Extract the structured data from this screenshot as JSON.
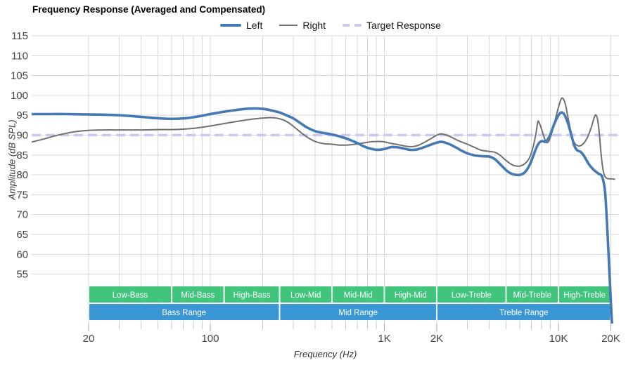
{
  "title": "Frequency Response (Averaged and Compensated)",
  "legend": [
    {
      "label": "Left"
    },
    {
      "label": "Right"
    },
    {
      "label": "Target Response"
    }
  ],
  "axes": {
    "x": {
      "label": "Frequency (Hz)"
    },
    "y": {
      "label": "Amplitude (dB SPL)"
    }
  },
  "colors": {
    "left": "#4579b4",
    "right": "#707070",
    "target": "#c8c8f0",
    "grid": "#d8d8d8",
    "tick": "#c4c4c4",
    "tick_label": "#444444",
    "band_green": "#41c57c",
    "band_blue": "#3b97d3",
    "band_text": "#ffffff"
  },
  "bands": {
    "sub_rows": [
      {
        "label": "Low-Bass",
        "from_hz": 20,
        "to_hz": 60
      },
      {
        "label": "Mid-Bass",
        "from_hz": 60,
        "to_hz": 120
      },
      {
        "label": "High-Bass",
        "from_hz": 120,
        "to_hz": 250
      },
      {
        "label": "Low-Mid",
        "from_hz": 250,
        "to_hz": 500
      },
      {
        "label": "Mid-Mid",
        "from_hz": 500,
        "to_hz": 1000
      },
      {
        "label": "High-Mid",
        "from_hz": 1000,
        "to_hz": 2000
      },
      {
        "label": "Low-Treble",
        "from_hz": 2000,
        "to_hz": 5000
      },
      {
        "label": "Mid-Treble",
        "from_hz": 5000,
        "to_hz": 10000
      },
      {
        "label": "High-Treble",
        "from_hz": 10000,
        "to_hz": 20000
      }
    ],
    "range_rows": [
      {
        "label": "Bass Range",
        "from_hz": 20,
        "to_hz": 250
      },
      {
        "label": "Mid Range",
        "from_hz": 250,
        "to_hz": 2000
      },
      {
        "label": "Treble Range",
        "from_hz": 2000,
        "to_hz": 20000
      }
    ]
  },
  "chart_data": {
    "type": "line",
    "title": "Frequency Response (Averaged and Compensated)",
    "xlabel": "Frequency (Hz)",
    "ylabel": "Amplitude (dB SPL)",
    "x_scale": "log",
    "x_range_hz": [
      9.4,
      22400
    ],
    "y_range_db": [
      42.5,
      115
    ],
    "grid": true,
    "legend_position": "top",
    "y_ticks": [
      115,
      110,
      105,
      100,
      95,
      90,
      85,
      80,
      75,
      70,
      65,
      60,
      55
    ],
    "x_ticks": [
      {
        "hz": 20,
        "label": "20"
      },
      {
        "hz": 100,
        "label": "100"
      },
      {
        "hz": 1000,
        "label": "1K"
      },
      {
        "hz": 2000,
        "label": "2K"
      },
      {
        "hz": 10000,
        "label": "10K"
      },
      {
        "hz": 20000,
        "label": "20K"
      }
    ],
    "x_minor_ticks_hz": [
      20,
      30,
      40,
      50,
      60,
      70,
      80,
      90,
      100,
      200,
      300,
      400,
      500,
      600,
      700,
      800,
      900,
      1000,
      2000,
      3000,
      4000,
      5000,
      6000,
      7000,
      8000,
      9000,
      10000,
      20000
    ],
    "target_response_db": 90,
    "series": [
      {
        "name": "Left",
        "points": [
          [
            9.5,
            95.3
          ],
          [
            12,
            95.3
          ],
          [
            15,
            95.3
          ],
          [
            20,
            95.2
          ],
          [
            25,
            95.15
          ],
          [
            30,
            95.0
          ],
          [
            35,
            94.8
          ],
          [
            40,
            94.6
          ],
          [
            45,
            94.4
          ],
          [
            50,
            94.25
          ],
          [
            55,
            94.15
          ],
          [
            60,
            94.1
          ],
          [
            70,
            94.2
          ],
          [
            80,
            94.5
          ],
          [
            90,
            94.9
          ],
          [
            100,
            95.3
          ],
          [
            120,
            95.9
          ],
          [
            140,
            96.3
          ],
          [
            160,
            96.6
          ],
          [
            180,
            96.7
          ],
          [
            200,
            96.6
          ],
          [
            220,
            96.3
          ],
          [
            250,
            95.7
          ],
          [
            280,
            94.8
          ],
          [
            300,
            94.2
          ],
          [
            330,
            93.0
          ],
          [
            360,
            91.9
          ],
          [
            400,
            91.0
          ],
          [
            440,
            90.6
          ],
          [
            480,
            90.3
          ],
          [
            520,
            90.0
          ],
          [
            560,
            89.6
          ],
          [
            600,
            89.2
          ],
          [
            650,
            88.6
          ],
          [
            700,
            88.0
          ],
          [
            750,
            87.3
          ],
          [
            800,
            86.8
          ],
          [
            850,
            86.5
          ],
          [
            900,
            86.3
          ],
          [
            950,
            86.35
          ],
          [
            1000,
            86.5
          ],
          [
            1100,
            87.0
          ],
          [
            1200,
            86.9
          ],
          [
            1300,
            86.6
          ],
          [
            1400,
            86.3
          ],
          [
            1500,
            86.3
          ],
          [
            1600,
            86.6
          ],
          [
            1700,
            87.0
          ],
          [
            1800,
            87.4
          ],
          [
            1900,
            87.8
          ],
          [
            2000,
            88.1
          ],
          [
            2100,
            88.3
          ],
          [
            2200,
            88.2
          ],
          [
            2400,
            87.6
          ],
          [
            2600,
            86.8
          ],
          [
            2800,
            86.0
          ],
          [
            3000,
            85.4
          ],
          [
            3300,
            84.9
          ],
          [
            3600,
            84.7
          ],
          [
            4000,
            84.6
          ],
          [
            4300,
            84.0
          ],
          [
            4600,
            82.8
          ],
          [
            5000,
            81.2
          ],
          [
            5300,
            80.4
          ],
          [
            5600,
            80.05
          ],
          [
            6000,
            80.0
          ],
          [
            6400,
            80.6
          ],
          [
            6800,
            82.3
          ],
          [
            7200,
            85.0
          ],
          [
            7500,
            87.0
          ],
          [
            7800,
            88.2
          ],
          [
            8100,
            88.5
          ],
          [
            8400,
            88.3
          ],
          [
            8700,
            89.0
          ],
          [
            9000,
            90.3
          ],
          [
            9500,
            93.0
          ],
          [
            10000,
            95.0
          ],
          [
            10400,
            95.7
          ],
          [
            10800,
            95.2
          ],
          [
            11300,
            93.2
          ],
          [
            11800,
            90.4
          ],
          [
            12300,
            87.5
          ],
          [
            12800,
            86.2
          ],
          [
            13400,
            85.8
          ],
          [
            14000,
            84.8
          ],
          [
            15000,
            82.6
          ],
          [
            16000,
            81.2
          ],
          [
            17000,
            80.3
          ],
          [
            17800,
            79.6
          ],
          [
            18500,
            76
          ],
          [
            19000,
            68
          ],
          [
            19500,
            58
          ],
          [
            20000,
            48
          ],
          [
            20400,
            41
          ]
        ]
      },
      {
        "name": "Right",
        "points": [
          [
            9.5,
            88.3
          ],
          [
            11,
            89.0
          ],
          [
            13,
            89.9
          ],
          [
            15,
            90.5
          ],
          [
            17,
            90.9
          ],
          [
            20,
            91.2
          ],
          [
            25,
            91.3
          ],
          [
            30,
            91.3
          ],
          [
            40,
            91.3
          ],
          [
            50,
            91.4
          ],
          [
            60,
            91.4
          ],
          [
            70,
            91.5
          ],
          [
            80,
            91.7
          ],
          [
            90,
            92.0
          ],
          [
            100,
            92.3
          ],
          [
            120,
            92.9
          ],
          [
            140,
            93.4
          ],
          [
            160,
            93.8
          ],
          [
            180,
            94.1
          ],
          [
            200,
            94.3
          ],
          [
            220,
            94.4
          ],
          [
            240,
            94.3
          ],
          [
            260,
            93.9
          ],
          [
            280,
            93.2
          ],
          [
            300,
            92.2
          ],
          [
            320,
            91.2
          ],
          [
            340,
            90.3
          ],
          [
            360,
            89.5
          ],
          [
            380,
            88.9
          ],
          [
            400,
            88.4
          ],
          [
            430,
            88.0
          ],
          [
            460,
            87.8
          ],
          [
            500,
            87.7
          ],
          [
            550,
            87.5
          ],
          [
            600,
            87.5
          ],
          [
            650,
            87.6
          ],
          [
            700,
            87.8
          ],
          [
            750,
            88.0
          ],
          [
            800,
            88.2
          ],
          [
            850,
            88.35
          ],
          [
            900,
            88.4
          ],
          [
            950,
            88.4
          ],
          [
            1000,
            88.3
          ],
          [
            1100,
            87.9
          ],
          [
            1200,
            87.6
          ],
          [
            1300,
            87.3
          ],
          [
            1400,
            87.1
          ],
          [
            1500,
            87.2
          ],
          [
            1600,
            87.6
          ],
          [
            1700,
            88.2
          ],
          [
            1800,
            88.8
          ],
          [
            1900,
            89.4
          ],
          [
            2000,
            90.0
          ],
          [
            2100,
            90.3
          ],
          [
            2200,
            90.2
          ],
          [
            2400,
            89.6
          ],
          [
            2600,
            88.8
          ],
          [
            2800,
            88.2
          ],
          [
            3000,
            87.7
          ],
          [
            3300,
            86.9
          ],
          [
            3600,
            86.2
          ],
          [
            4000,
            85.9
          ],
          [
            4300,
            85.7
          ],
          [
            4600,
            85.0
          ],
          [
            5000,
            83.6
          ],
          [
            5300,
            82.8
          ],
          [
            5600,
            82.3
          ],
          [
            6000,
            82.2
          ],
          [
            6400,
            82.8
          ],
          [
            6800,
            84.2
          ],
          [
            7100,
            86.5
          ],
          [
            7400,
            90.0
          ],
          [
            7600,
            93.2
          ],
          [
            7700,
            93.4
          ],
          [
            7900,
            92.2
          ],
          [
            8200,
            90.0
          ],
          [
            8500,
            88.2
          ],
          [
            8800,
            88.5
          ],
          [
            9100,
            90.2
          ],
          [
            9500,
            93.2
          ],
          [
            10000,
            97.0
          ],
          [
            10400,
            99.2
          ],
          [
            10700,
            99.0
          ],
          [
            11000,
            97.5
          ],
          [
            11400,
            94.0
          ],
          [
            11800,
            90.8
          ],
          [
            12200,
            88.5
          ],
          [
            12700,
            87.5
          ],
          [
            13300,
            87.3
          ],
          [
            14000,
            88.0
          ],
          [
            14700,
            89.5
          ],
          [
            15400,
            91.8
          ],
          [
            16000,
            94.2
          ],
          [
            16400,
            95.1
          ],
          [
            16800,
            93.8
          ],
          [
            17200,
            90.0
          ],
          [
            17600,
            85.0
          ],
          [
            18000,
            81.5
          ],
          [
            18400,
            79.8
          ],
          [
            19000,
            79.1
          ],
          [
            20000,
            79.0
          ],
          [
            21000,
            78.9
          ]
        ]
      }
    ]
  }
}
